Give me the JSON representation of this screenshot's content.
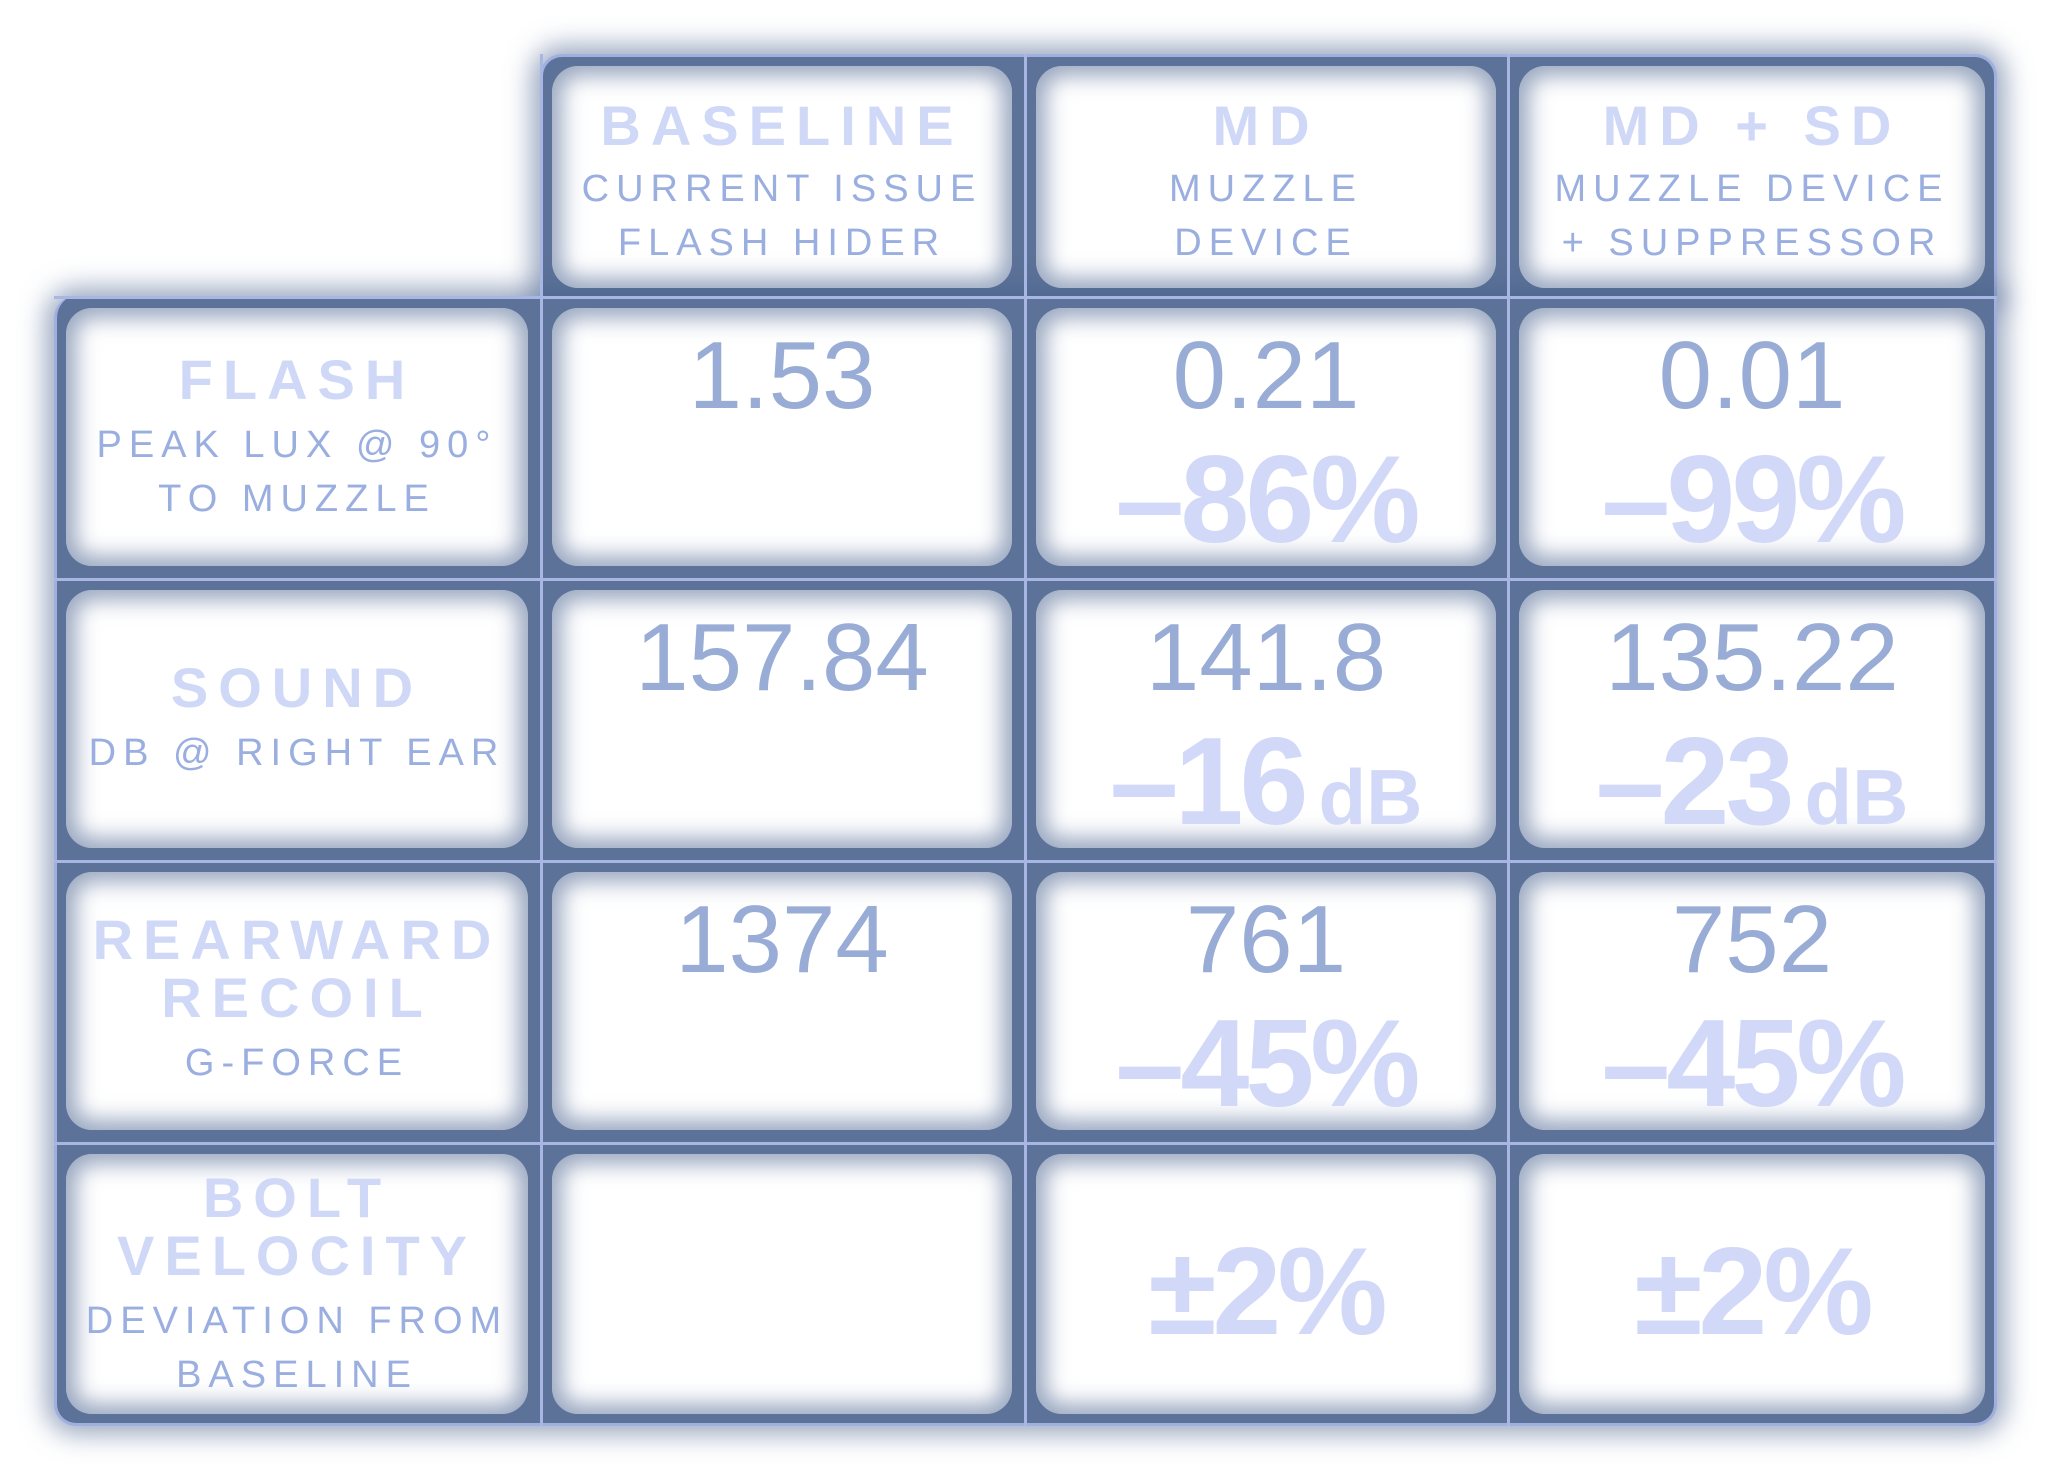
{
  "columns": [
    {
      "title": "BASELINE",
      "sub_line1": "CURRENT ISSUE",
      "sub_line2": "FLASH HIDER"
    },
    {
      "title": "MD",
      "sub_line1": "MUZZLE",
      "sub_line2": "DEVICE"
    },
    {
      "title": "MD + SD",
      "sub_line1": "MUZZLE DEVICE",
      "sub_line2": "+ SUPPRESSOR"
    }
  ],
  "rows": [
    {
      "title_line1": "FLASH",
      "title_line2": "",
      "sub_line1": "PEAK LUX @ 90°",
      "sub_line2": "TO MUZZLE",
      "baseline": "1.53",
      "md": {
        "value": "0.21",
        "delta": "–86%",
        "unit": ""
      },
      "mdsd": {
        "value": "0.01",
        "delta": "–99%",
        "unit": ""
      }
    },
    {
      "title_line1": "SOUND",
      "title_line2": "",
      "sub_line1": "DB @ RIGHT EAR",
      "sub_line2": "",
      "baseline": "157.84",
      "md": {
        "value": "141.8",
        "delta": "–16",
        "unit": "dB"
      },
      "mdsd": {
        "value": "135.22",
        "delta": "–23",
        "unit": "dB"
      }
    },
    {
      "title_line1": "REARWARD",
      "title_line2": "RECOIL",
      "sub_line1": "G-FORCE",
      "sub_line2": "",
      "baseline": "1374",
      "md": {
        "value": "761",
        "delta": "–45%",
        "unit": ""
      },
      "mdsd": {
        "value": "752",
        "delta": "–45%",
        "unit": ""
      }
    },
    {
      "title_line1": "BOLT",
      "title_line2": "VELOCITY",
      "sub_line1": "DEVIATION FROM",
      "sub_line2": "BASELINE",
      "baseline": "",
      "md": {
        "value": "",
        "delta": "±2%",
        "unit": ""
      },
      "mdsd": {
        "value": "",
        "delta": "±2%",
        "unit": ""
      }
    }
  ],
  "colors": {
    "frame": "#5c7298",
    "grid_line": "#a8b6e4",
    "title_text": "#cfd8f6",
    "sub_text": "#9aaee0",
    "value_text": "#98acd6",
    "delta_text": "#d2d9f8"
  }
}
